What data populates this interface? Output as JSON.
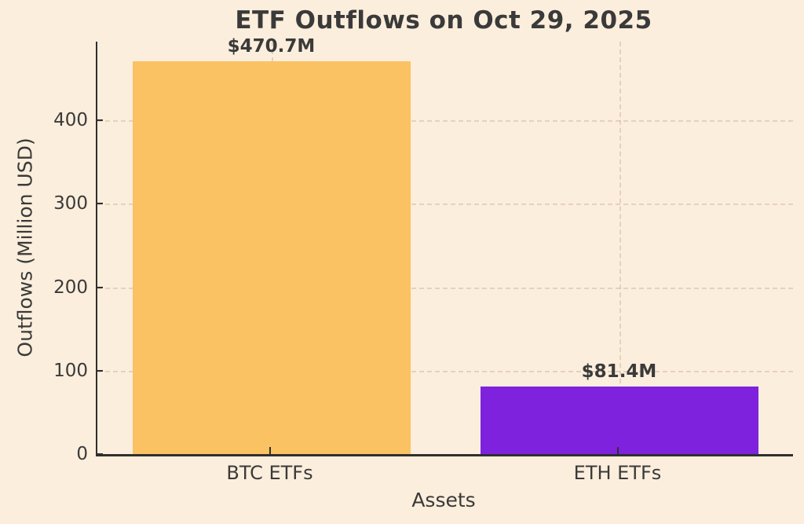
{
  "chart_data": {
    "type": "bar",
    "title": "ETF Outflows on Oct 29, 2025",
    "xlabel": "Assets",
    "ylabel": "Outflows (Million USD)",
    "categories": [
      "BTC ETFs",
      "ETH ETFs"
    ],
    "values": [
      470.7,
      81.4
    ],
    "value_labels": [
      "$470.7M",
      "$81.4M"
    ],
    "bar_colors": [
      "#FBC263",
      "#7E22DD"
    ],
    "yticks": [
      0,
      100,
      200,
      300,
      400
    ],
    "ylim": [
      0,
      494.2
    ],
    "grid": true,
    "legend": "none",
    "background_color": "#FCEEDC",
    "text_color": "#3A3A3A"
  }
}
